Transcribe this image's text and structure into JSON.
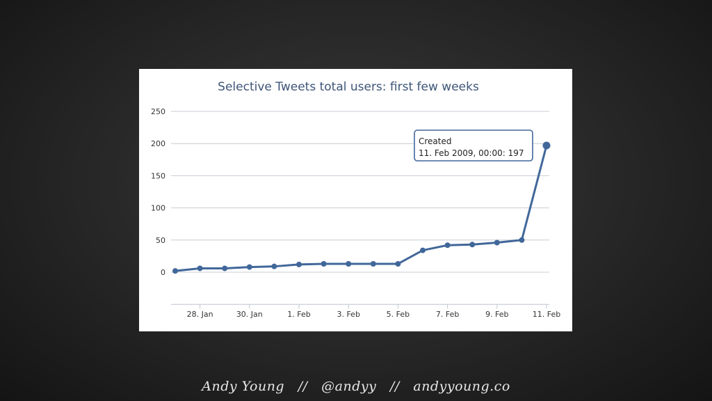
{
  "footer": {
    "text": "Andy Young   //   @andyy   //   andyyoung.co"
  },
  "chart_data": {
    "type": "line",
    "title": "Selective Tweets total users: first few weeks",
    "xlabel": "",
    "ylabel": "",
    "ylim": [
      -50,
      250
    ],
    "yticks": [
      0,
      50,
      100,
      150,
      200,
      250
    ],
    "x_tick_labels": [
      "28. Jan",
      "30. Jan",
      "1. Feb",
      "3. Feb",
      "5. Feb",
      "7. Feb",
      "9. Feb",
      "11. Feb"
    ],
    "grid": true,
    "series": [
      {
        "x": [
          "27. Jan",
          "28. Jan",
          "29. Jan",
          "30. Jan",
          "31. Jan",
          "1. Feb",
          "2. Feb",
          "3. Feb",
          "4. Feb",
          "5. Feb",
          "6. Feb",
          "7. Feb",
          "8. Feb",
          "9. Feb",
          "10. Feb",
          "11. Feb"
        ],
        "values": [
          2,
          6,
          6,
          8,
          9,
          12,
          13,
          13,
          13,
          13,
          34,
          42,
          43,
          46,
          50,
          197
        ],
        "color": "#41679a"
      }
    ],
    "tooltip": {
      "label": "Created",
      "text": "11. Feb 2009, 00:00: 197"
    }
  }
}
